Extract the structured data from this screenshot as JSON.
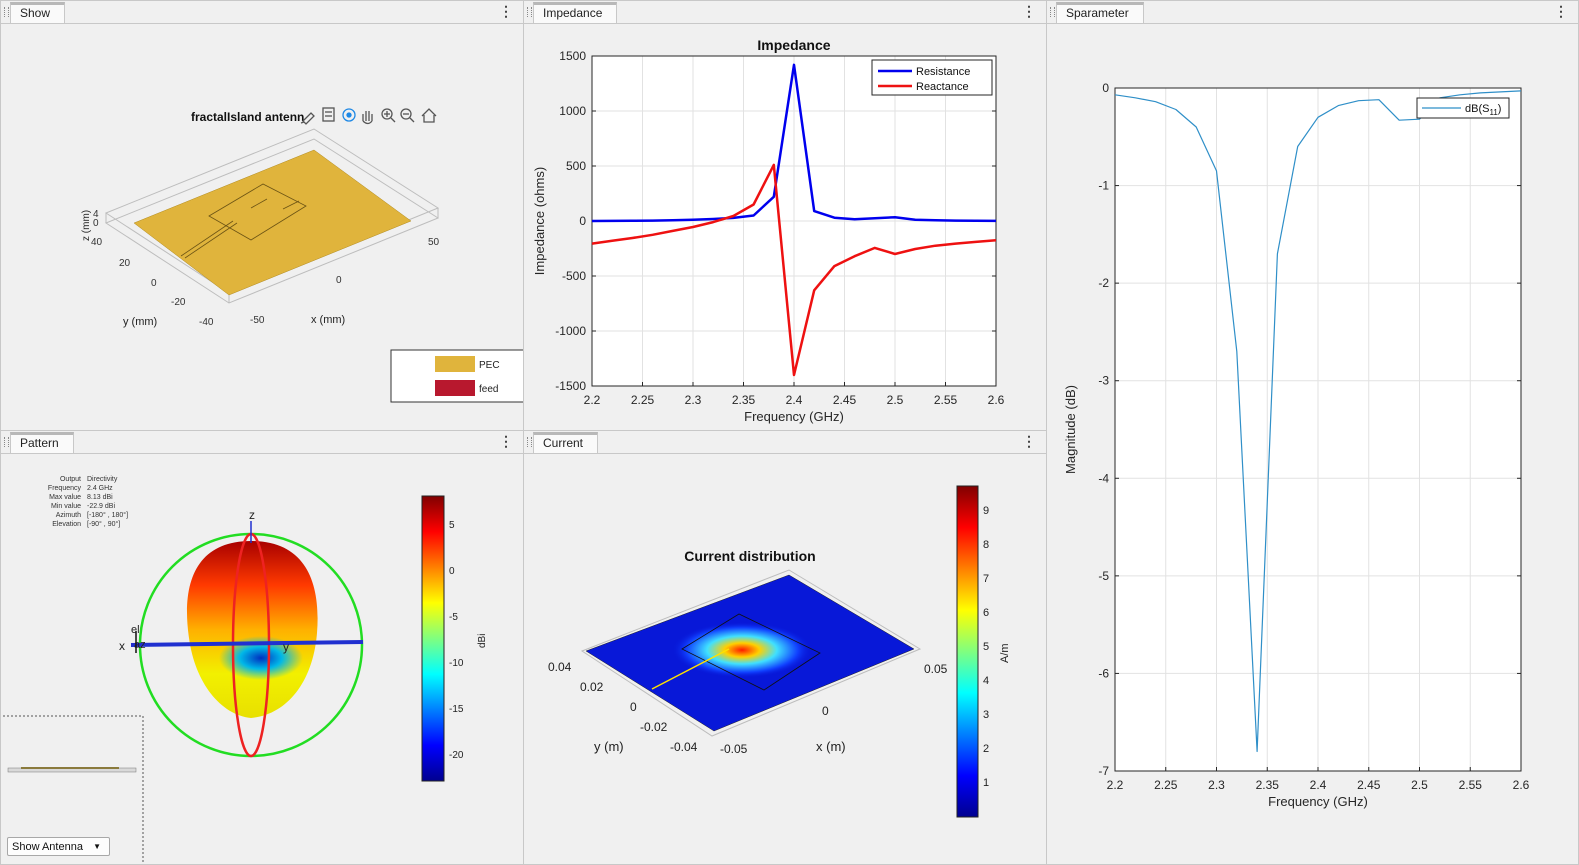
{
  "show_panel": {
    "tab": "Show",
    "title": "fractalIsland antenn",
    "xlabel": "x (mm)",
    "ylabel": "y (mm)",
    "zlabel": "z (mm)",
    "x_ticks": [
      "-50",
      "0",
      "50"
    ],
    "y_ticks": [
      "40",
      "20",
      "0",
      "-20",
      "-40"
    ],
    "z_ticks": [
      "0",
      "4"
    ],
    "legend": [
      {
        "label": "PEC",
        "color": "#e0b43c"
      },
      {
        "label": "feed",
        "color": "#b8182e"
      }
    ]
  },
  "impedance_panel": {
    "tab": "Impedance",
    "chart_data": {
      "type": "line",
      "title": "Impedance",
      "xlabel": "Frequency (GHz)",
      "ylabel": "Impedance (ohms)",
      "xlim": [
        2.2,
        2.6
      ],
      "ylim": [
        -1500,
        1500
      ],
      "x_ticks": [
        "2.2",
        "2.25",
        "2.3",
        "2.35",
        "2.4",
        "2.45",
        "2.5",
        "2.55",
        "2.6"
      ],
      "y_ticks": [
        "1500",
        "1000",
        "500",
        "0",
        "-500",
        "-1000",
        "-1500"
      ],
      "grid": true,
      "legend_position": "top-right",
      "x": [
        2.2,
        2.22,
        2.24,
        2.26,
        2.28,
        2.3,
        2.32,
        2.34,
        2.36,
        2.38,
        2.4,
        2.42,
        2.44,
        2.46,
        2.48,
        2.5,
        2.52,
        2.54,
        2.56,
        2.58,
        2.6
      ],
      "series": [
        {
          "name": "Resistance",
          "color": "#0000ee",
          "values": [
            0,
            1,
            2,
            4,
            7,
            11,
            18,
            28,
            50,
            220,
            1420,
            90,
            30,
            15,
            25,
            35,
            12,
            6,
            4,
            2,
            1
          ]
        },
        {
          "name": "Reactance",
          "color": "#ee1111",
          "values": [
            -205,
            -180,
            -155,
            -125,
            -90,
            -55,
            -10,
            45,
            150,
            510,
            -1400,
            -630,
            -410,
            -320,
            -245,
            -300,
            -255,
            -225,
            -205,
            -190,
            -175
          ]
        }
      ]
    }
  },
  "sparameter_panel": {
    "tab": "Sparameter",
    "chart_data": {
      "type": "line",
      "title": "",
      "xlabel": "Frequency (GHz)",
      "ylabel": "Magnitude (dB)",
      "xlim": [
        2.2,
        2.6
      ],
      "ylim": [
        -7,
        0
      ],
      "x_ticks": [
        "2.2",
        "2.25",
        "2.3",
        "2.35",
        "2.4",
        "2.45",
        "2.5",
        "2.55",
        "2.6"
      ],
      "y_ticks": [
        "0",
        "-1",
        "-2",
        "-3",
        "-4",
        "-5",
        "-6",
        "-7"
      ],
      "grid": true,
      "legend_position": "top-right",
      "x": [
        2.2,
        2.22,
        2.24,
        2.26,
        2.28,
        2.3,
        2.32,
        2.34,
        2.36,
        2.38,
        2.4,
        2.42,
        2.44,
        2.46,
        2.48,
        2.5,
        2.52,
        2.54,
        2.56,
        2.58,
        2.6
      ],
      "series": [
        {
          "name": "dB(S",
          "subscript": "11",
          "suffix": ")",
          "color": "#2f8fc8",
          "values": [
            -0.07,
            -0.1,
            -0.14,
            -0.22,
            -0.4,
            -0.85,
            -2.7,
            -6.8,
            -1.7,
            -0.6,
            -0.3,
            -0.18,
            -0.13,
            -0.12,
            -0.33,
            -0.32,
            -0.1,
            -0.07,
            -0.05,
            -0.04,
            -0.03
          ]
        }
      ]
    }
  },
  "pattern_panel": {
    "tab": "Pattern",
    "info_labels": [
      "Output",
      "Frequency",
      "Max value",
      "Min value",
      "Azimuth",
      "Elevation"
    ],
    "info_values": [
      "Directivity",
      "2.4 GHz",
      "8.13 dBi",
      "-22.9 dBi",
      "[-180° , 180°]",
      "[-90° , 90°]"
    ],
    "colorbar_ticks": [
      "5",
      "0",
      "-5",
      "-10",
      "-15",
      "-20"
    ],
    "colorbar_label": "dBi",
    "axis_labels": {
      "z": "z",
      "x": "x",
      "y": "y",
      "el": "el",
      "az": "az"
    },
    "dropdown": "Show Antenna",
    "dropdown_caret": "▼"
  },
  "current_panel": {
    "tab": "Current",
    "title": "Current distribution",
    "xlabel": "x (m)",
    "ylabel": "y (m)",
    "x_ticks": [
      "-0.05",
      "0",
      "0.05"
    ],
    "y_ticks": [
      "0.04",
      "0.02",
      "0",
      "-0.02",
      "-0.04"
    ],
    "colorbar_ticks": [
      "9",
      "8",
      "7",
      "6",
      "5",
      "4",
      "3",
      "2",
      "1"
    ],
    "colorbar_label": "A/m"
  },
  "toolbar_icons": [
    "brush-icon",
    "data-tips-icon",
    "rotate-icon",
    "pan-icon",
    "zoom-in-icon",
    "zoom-out-icon",
    "home-icon"
  ],
  "kebab_glyph": "⋮"
}
